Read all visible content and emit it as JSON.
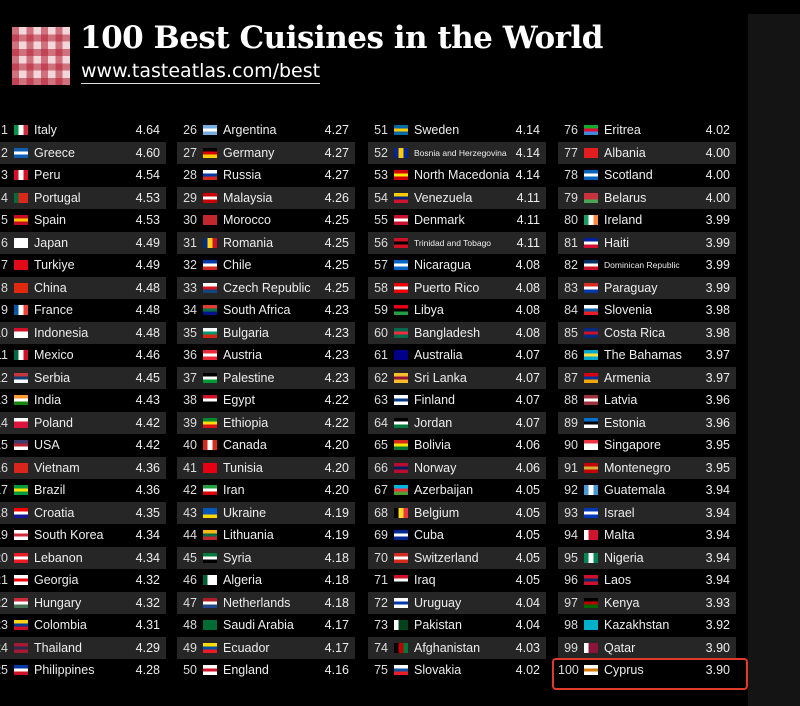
{
  "header": {
    "title": "100 Best Cuisines in the World",
    "url": "www.tasteatlas.com/best"
  },
  "highlight_color": "#e23a2a",
  "rankings": [
    {
      "rank": "1",
      "name": "Italy",
      "score": "4.64",
      "flag": "v:#009246,#fff,#ce2b37"
    },
    {
      "rank": "2",
      "name": "Greece",
      "score": "4.60",
      "flag": "h:#0d5eaf,#fff,#0d5eaf"
    },
    {
      "rank": "3",
      "name": "Peru",
      "score": "4.54",
      "flag": "v:#d91023,#fff,#d91023"
    },
    {
      "rank": "4",
      "name": "Portugal",
      "score": "4.53",
      "flag": "v:#046a38,#da291c,#da291c"
    },
    {
      "rank": "5",
      "name": "Spain",
      "score": "4.53",
      "flag": "h:#c60b1e,#ffc400,#c60b1e"
    },
    {
      "rank": "6",
      "name": "Japan",
      "score": "4.49",
      "flag": "h:#fff,#fff,#fff"
    },
    {
      "rank": "7",
      "name": "Turkiye",
      "score": "4.49",
      "flag": "h:#e30a17,#e30a17,#e30a17"
    },
    {
      "rank": "8",
      "name": "China",
      "score": "4.48",
      "flag": "h:#de2910,#de2910,#de2910"
    },
    {
      "rank": "9",
      "name": "France",
      "score": "4.48",
      "flag": "v:#0055a4,#fff,#ef4135"
    },
    {
      "rank": "10",
      "name": "Indonesia",
      "score": "4.48",
      "flag": "h:#ce1126,#fff,#fff"
    },
    {
      "rank": "11",
      "name": "Mexico",
      "score": "4.46",
      "flag": "v:#006847,#fff,#ce1126"
    },
    {
      "rank": "12",
      "name": "Serbia",
      "score": "4.45",
      "flag": "h:#c6363c,#0c4076,#fff"
    },
    {
      "rank": "13",
      "name": "India",
      "score": "4.43",
      "flag": "h:#ff9933,#fff,#138808"
    },
    {
      "rank": "14",
      "name": "Poland",
      "score": "4.42",
      "flag": "h:#fff,#dc143c,#dc143c"
    },
    {
      "rank": "15",
      "name": "USA",
      "score": "4.42",
      "flag": "h:#3c3b6e,#b22234,#fff"
    },
    {
      "rank": "16",
      "name": "Vietnam",
      "score": "4.36",
      "flag": "h:#da251d,#da251d,#da251d"
    },
    {
      "rank": "17",
      "name": "Brazil",
      "score": "4.36",
      "flag": "h:#009c3b,#ffdf00,#009c3b"
    },
    {
      "rank": "18",
      "name": "Croatia",
      "score": "4.35",
      "flag": "h:#ff0000,#fff,#171796"
    },
    {
      "rank": "19",
      "name": "South Korea",
      "score": "4.34",
      "flag": "h:#fff,#cd2e3a,#fff"
    },
    {
      "rank": "20",
      "name": "Lebanon",
      "score": "4.34",
      "flag": "h:#ed1c24,#fff,#ed1c24"
    },
    {
      "rank": "21",
      "name": "Georgia",
      "score": "4.32",
      "flag": "h:#fff,#e00,#fff"
    },
    {
      "rank": "22",
      "name": "Hungary",
      "score": "4.32",
      "flag": "h:#ce2939,#fff,#477050"
    },
    {
      "rank": "23",
      "name": "Colombia",
      "score": "4.31",
      "flag": "h:#fcd116,#003893,#ce1126"
    },
    {
      "rank": "24",
      "name": "Thailand",
      "score": "4.29",
      "flag": "h:#a51931,#2d2a4a,#a51931"
    },
    {
      "rank": "25",
      "name": "Philippines",
      "score": "4.28",
      "flag": "h:#0038a8,#fff,#ce1126"
    },
    {
      "rank": "26",
      "name": "Argentina",
      "score": "4.27",
      "flag": "h:#74acdf,#fff,#74acdf"
    },
    {
      "rank": "27",
      "name": "Germany",
      "score": "4.27",
      "flag": "h:#000,#dd0000,#ffce00"
    },
    {
      "rank": "28",
      "name": "Russia",
      "score": "4.27",
      "flag": "h:#fff,#0039a6,#d52b1e"
    },
    {
      "rank": "29",
      "name": "Malaysia",
      "score": "4.26",
      "flag": "h:#cc0001,#fff,#cc0001"
    },
    {
      "rank": "30",
      "name": "Morocco",
      "score": "4.25",
      "flag": "h:#c1272d,#c1272d,#c1272d"
    },
    {
      "rank": "31",
      "name": "Romania",
      "score": "4.25",
      "flag": "v:#002b7f,#fcd116,#ce1126"
    },
    {
      "rank": "32",
      "name": "Chile",
      "score": "4.25",
      "flag": "h:#0039a6,#fff,#d52b1e"
    },
    {
      "rank": "33",
      "name": "Czech Republic",
      "score": "4.25",
      "flag": "h:#fff,#d7141a,#11457e"
    },
    {
      "rank": "34",
      "name": "South Africa",
      "score": "4.23",
      "flag": "h:#e03c31,#007749,#001489"
    },
    {
      "rank": "35",
      "name": "Bulgaria",
      "score": "4.23",
      "flag": "h:#fff,#00966e,#d62612"
    },
    {
      "rank": "36",
      "name": "Austria",
      "score": "4.23",
      "flag": "h:#ed2939,#fff,#ed2939"
    },
    {
      "rank": "37",
      "name": "Palestine",
      "score": "4.23",
      "flag": "h:#000,#fff,#009736"
    },
    {
      "rank": "38",
      "name": "Egypt",
      "score": "4.22",
      "flag": "h:#ce1126,#fff,#000"
    },
    {
      "rank": "39",
      "name": "Ethiopia",
      "score": "4.22",
      "flag": "h:#078930,#fcdd09,#da121a"
    },
    {
      "rank": "40",
      "name": "Canada",
      "score": "4.20",
      "flag": "v:#d52b1e,#fff,#d52b1e"
    },
    {
      "rank": "41",
      "name": "Tunisia",
      "score": "4.20",
      "flag": "h:#e70013,#e70013,#e70013"
    },
    {
      "rank": "42",
      "name": "Iran",
      "score": "4.20",
      "flag": "h:#239f40,#fff,#da0000"
    },
    {
      "rank": "43",
      "name": "Ukraine",
      "score": "4.19",
      "flag": "h:#0057b7,#0057b7,#ffd700"
    },
    {
      "rank": "44",
      "name": "Lithuania",
      "score": "4.19",
      "flag": "h:#fdb913,#006a44,#c1272d"
    },
    {
      "rank": "45",
      "name": "Syria",
      "score": "4.18",
      "flag": "h:#007a3d,#fff,#000"
    },
    {
      "rank": "46",
      "name": "Algeria",
      "score": "4.18",
      "flag": "v:#006233,#fff,#fff"
    },
    {
      "rank": "47",
      "name": "Netherlands",
      "score": "4.18",
      "flag": "h:#ae1c28,#fff,#21468b"
    },
    {
      "rank": "48",
      "name": "Saudi Arabia",
      "score": "4.17",
      "flag": "h:#006c35,#006c35,#006c35"
    },
    {
      "rank": "49",
      "name": "Ecuador",
      "score": "4.17",
      "flag": "h:#ffdd00,#034ea2,#ed1c24"
    },
    {
      "rank": "50",
      "name": "England",
      "score": "4.16",
      "flag": "h:#fff,#ce1124,#fff"
    },
    {
      "rank": "51",
      "name": "Sweden",
      "score": "4.14",
      "flag": "h:#006aa7,#fecc00,#006aa7"
    },
    {
      "rank": "52",
      "name": "Bosnia and Herzegovina",
      "score": "4.14",
      "flag": "v:#002395,#fecb00,#002395"
    },
    {
      "rank": "53",
      "name": "North Macedonia",
      "score": "4.14",
      "flag": "h:#d20000,#ffe600,#d20000"
    },
    {
      "rank": "54",
      "name": "Venezuela",
      "score": "4.11",
      "flag": "h:#ffcc00,#00247d,#cf142b"
    },
    {
      "rank": "55",
      "name": "Denmark",
      "score": "4.11",
      "flag": "h:#c8102e,#fff,#c8102e"
    },
    {
      "rank": "56",
      "name": "Trinidad and Tobago",
      "score": "4.11",
      "flag": "h:#ce1126,#000,#ce1126"
    },
    {
      "rank": "57",
      "name": "Nicaragua",
      "score": "4.08",
      "flag": "h:#0067c6,#fff,#0067c6"
    },
    {
      "rank": "58",
      "name": "Puerto Rico",
      "score": "4.08",
      "flag": "h:#ed0000,#fff,#ed0000"
    },
    {
      "rank": "59",
      "name": "Libya",
      "score": "4.08",
      "flag": "h:#e70013,#000,#239e46"
    },
    {
      "rank": "60",
      "name": "Bangladesh",
      "score": "4.08",
      "flag": "h:#006a4e,#f42a41,#006a4e"
    },
    {
      "rank": "61",
      "name": "Australia",
      "score": "4.07",
      "flag": "h:#00008b,#00008b,#00008b"
    },
    {
      "rank": "62",
      "name": "Sri Lanka",
      "score": "4.07",
      "flag": "h:#ffbe29,#8d153a,#ffbe29"
    },
    {
      "rank": "63",
      "name": "Finland",
      "score": "4.07",
      "flag": "h:#fff,#003580,#fff"
    },
    {
      "rank": "64",
      "name": "Jordan",
      "score": "4.07",
      "flag": "h:#000,#fff,#007a3d"
    },
    {
      "rank": "65",
      "name": "Bolivia",
      "score": "4.06",
      "flag": "h:#d52b1e,#f9e300,#007934"
    },
    {
      "rank": "66",
      "name": "Norway",
      "score": "4.06",
      "flag": "h:#ba0c2f,#00205b,#ba0c2f"
    },
    {
      "rank": "67",
      "name": "Azerbaijan",
      "score": "4.05",
      "flag": "h:#00b5e2,#ef3340,#509e2f"
    },
    {
      "rank": "68",
      "name": "Belgium",
      "score": "4.05",
      "flag": "v:#000,#fdda24,#ef3340"
    },
    {
      "rank": "69",
      "name": "Cuba",
      "score": "4.05",
      "flag": "h:#002a8f,#fff,#002a8f"
    },
    {
      "rank": "70",
      "name": "Switzerland",
      "score": "4.05",
      "flag": "h:#d52b1e,#fff,#d52b1e"
    },
    {
      "rank": "71",
      "name": "Iraq",
      "score": "4.05",
      "flag": "h:#ce1126,#fff,#000"
    },
    {
      "rank": "72",
      "name": "Uruguay",
      "score": "4.04",
      "flag": "h:#fff,#0038a8,#fff"
    },
    {
      "rank": "73",
      "name": "Pakistan",
      "score": "4.04",
      "flag": "v:#fff,#01411c,#01411c"
    },
    {
      "rank": "74",
      "name": "Afghanistan",
      "score": "4.03",
      "flag": "v:#000,#be0000,#007a36"
    },
    {
      "rank": "75",
      "name": "Slovakia",
      "score": "4.02",
      "flag": "h:#fff,#0b4ea2,#ee1c25"
    },
    {
      "rank": "76",
      "name": "Eritrea",
      "score": "4.02",
      "flag": "h:#12ad2b,#ea0437,#4189dd"
    },
    {
      "rank": "77",
      "name": "Albania",
      "score": "4.00",
      "flag": "h:#e41e20,#e41e20,#e41e20"
    },
    {
      "rank": "78",
      "name": "Scotland",
      "score": "4.00",
      "flag": "h:#0065bd,#fff,#0065bd"
    },
    {
      "rank": "79",
      "name": "Belarus",
      "score": "4.00",
      "flag": "h:#c8313e,#c8313e,#4aa657"
    },
    {
      "rank": "80",
      "name": "Ireland",
      "score": "3.99",
      "flag": "v:#169b62,#fff,#ff883e"
    },
    {
      "rank": "81",
      "name": "Haiti",
      "score": "3.99",
      "flag": "h:#00209f,#fff,#d21034"
    },
    {
      "rank": "82",
      "name": "Dominican Republic",
      "score": "3.99",
      "flag": "h:#002d62,#fff,#ce1126"
    },
    {
      "rank": "83",
      "name": "Paraguay",
      "score": "3.99",
      "flag": "h:#d52b1e,#fff,#0038a8"
    },
    {
      "rank": "84",
      "name": "Slovenia",
      "score": "3.98",
      "flag": "h:#fff,#005da4,#ed1c24"
    },
    {
      "rank": "85",
      "name": "Costa Rica",
      "score": "3.98",
      "flag": "h:#002b7f,#ce1126,#002b7f"
    },
    {
      "rank": "86",
      "name": "The Bahamas",
      "score": "3.97",
      "flag": "h:#00abc9,#fae042,#00abc9"
    },
    {
      "rank": "87",
      "name": "Armenia",
      "score": "3.97",
      "flag": "h:#d90012,#0033a0,#f2a800"
    },
    {
      "rank": "88",
      "name": "Latvia",
      "score": "3.96",
      "flag": "h:#9e3039,#fff,#9e3039"
    },
    {
      "rank": "89",
      "name": "Estonia",
      "score": "3.96",
      "flag": "h:#0072ce,#000,#fff"
    },
    {
      "rank": "90",
      "name": "Singapore",
      "score": "3.95",
      "flag": "h:#ef3340,#fff,#fff"
    },
    {
      "rank": "91",
      "name": "Montenegro",
      "score": "3.95",
      "flag": "h:#c40308,#d4af37,#c40308"
    },
    {
      "rank": "92",
      "name": "Guatemala",
      "score": "3.94",
      "flag": "v:#4997d0,#fff,#4997d0"
    },
    {
      "rank": "93",
      "name": "Israel",
      "score": "3.94",
      "flag": "h:#0038b8,#fff,#0038b8"
    },
    {
      "rank": "94",
      "name": "Malta",
      "score": "3.94",
      "flag": "v:#fff,#cf142b,#cf142b"
    },
    {
      "rank": "95",
      "name": "Nigeria",
      "score": "3.94",
      "flag": "v:#008751,#fff,#008751"
    },
    {
      "rank": "96",
      "name": "Laos",
      "score": "3.94",
      "flag": "h:#ce1126,#002868,#ce1126"
    },
    {
      "rank": "97",
      "name": "Kenya",
      "score": "3.93",
      "flag": "h:#000,#bb0000,#006600"
    },
    {
      "rank": "98",
      "name": "Kazakhstan",
      "score": "3.92",
      "flag": "h:#00afca,#00afca,#00afca"
    },
    {
      "rank": "99",
      "name": "Qatar",
      "score": "3.90",
      "flag": "v:#fff,#8a1538,#8a1538"
    },
    {
      "rank": "100",
      "name": "Cyprus",
      "score": "3.90",
      "flag": "h:#fff,#d57800,#fff"
    }
  ]
}
